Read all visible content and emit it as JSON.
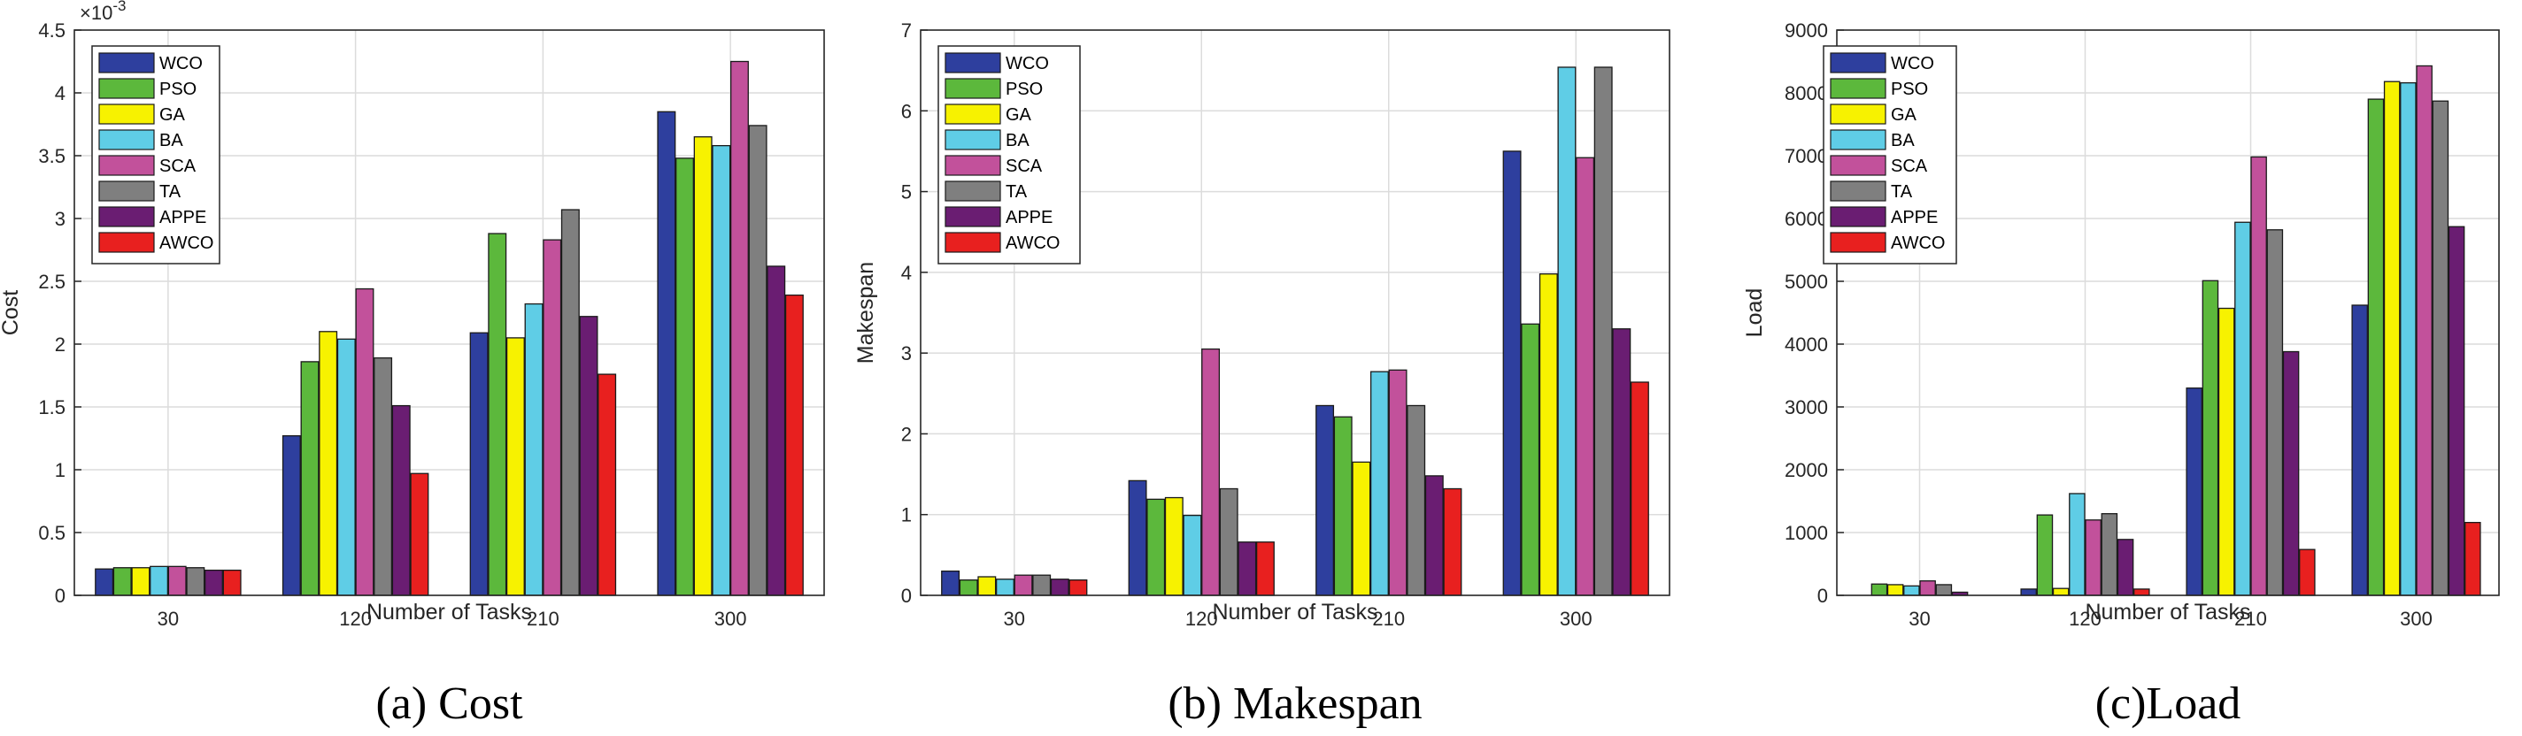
{
  "colors": {
    "WCO": "#2e3f9e",
    "PSO": "#5cb83c",
    "GA": "#f7f200",
    "BA": "#5fcde6",
    "SCA": "#c2519b",
    "TA": "#7f7f7f",
    "APPE": "#6a1d72",
    "AWCO": "#e8201f"
  },
  "chart_data": [
    {
      "type": "bar",
      "caption": "(a) Cost",
      "xlabel": "Number of Tasks",
      "ylabel": "Cost",
      "exponent_label": "×10",
      "exponent_power": "-3",
      "categories": [
        "30",
        "120",
        "210",
        "300"
      ],
      "ylim": [
        0,
        4.5
      ],
      "yticks": [
        0,
        0.5,
        1,
        1.5,
        2,
        2.5,
        3,
        3.5,
        4,
        4.5
      ],
      "ytick_labels": [
        "0",
        "0.5",
        "1",
        "1.5",
        "2",
        "2.5",
        "3",
        "3.5",
        "4",
        "4.5"
      ],
      "grid": true,
      "legend_position": "top-left",
      "series": [
        {
          "name": "WCO",
          "values": [
            0.21,
            1.27,
            2.09,
            3.85
          ]
        },
        {
          "name": "PSO",
          "values": [
            0.22,
            1.86,
            2.88,
            3.48
          ]
        },
        {
          "name": "GA",
          "values": [
            0.22,
            2.1,
            2.05,
            3.65
          ]
        },
        {
          "name": "BA",
          "values": [
            0.23,
            2.04,
            2.32,
            3.58
          ]
        },
        {
          "name": "SCA",
          "values": [
            0.23,
            2.44,
            2.83,
            4.25
          ]
        },
        {
          "name": "TA",
          "values": [
            0.22,
            1.89,
            3.07,
            3.74
          ]
        },
        {
          "name": "APPE",
          "values": [
            0.2,
            1.51,
            2.22,
            2.62
          ]
        },
        {
          "name": "AWCO",
          "values": [
            0.2,
            0.97,
            1.76,
            2.39
          ]
        }
      ]
    },
    {
      "type": "bar",
      "caption": "(b) Makespan",
      "xlabel": "Number of Tasks",
      "ylabel": "Makespan",
      "categories": [
        "30",
        "120",
        "210",
        "300"
      ],
      "ylim": [
        0,
        7
      ],
      "yticks": [
        0,
        1,
        2,
        3,
        4,
        5,
        6,
        7
      ],
      "ytick_labels": [
        "0",
        "1",
        "2",
        "3",
        "4",
        "5",
        "6",
        "7"
      ],
      "grid": true,
      "legend_position": "top-left",
      "series": [
        {
          "name": "WCO",
          "values": [
            0.3,
            1.42,
            2.35,
            5.5
          ]
        },
        {
          "name": "PSO",
          "values": [
            0.19,
            1.19,
            2.21,
            3.36
          ]
        },
        {
          "name": "GA",
          "values": [
            0.23,
            1.21,
            1.65,
            3.98
          ]
        },
        {
          "name": "BA",
          "values": [
            0.2,
            0.99,
            2.77,
            6.54
          ]
        },
        {
          "name": "SCA",
          "values": [
            0.25,
            3.05,
            2.79,
            5.42
          ]
        },
        {
          "name": "TA",
          "values": [
            0.25,
            1.32,
            2.35,
            6.54
          ]
        },
        {
          "name": "APPE",
          "values": [
            0.2,
            0.66,
            1.48,
            3.3
          ]
        },
        {
          "name": "AWCO",
          "values": [
            0.19,
            0.66,
            1.32,
            2.64
          ]
        }
      ]
    },
    {
      "type": "bar",
      "caption": "(c)Load",
      "xlabel": "Number of Tasks",
      "ylabel": "Load",
      "categories": [
        "30",
        "120",
        "210",
        "300"
      ],
      "ylim": [
        0,
        9000
      ],
      "yticks": [
        0,
        1000,
        2000,
        3000,
        4000,
        5000,
        6000,
        7000,
        8000,
        9000
      ],
      "ytick_labels": [
        "0",
        "1000",
        "2000",
        "3000",
        "4000",
        "5000",
        "6000",
        "7000",
        "8000",
        "9000"
      ],
      "grid": true,
      "legend_position": "top-left",
      "series": [
        {
          "name": "WCO",
          "values": [
            0,
            100,
            3300,
            4620
          ]
        },
        {
          "name": "PSO",
          "values": [
            180,
            1280,
            5010,
            7900
          ]
        },
        {
          "name": "GA",
          "values": [
            170,
            110,
            4570,
            8180
          ]
        },
        {
          "name": "BA",
          "values": [
            150,
            1620,
            5940,
            8160
          ]
        },
        {
          "name": "SCA",
          "values": [
            230,
            1200,
            6980,
            8430
          ]
        },
        {
          "name": "TA",
          "values": [
            170,
            1300,
            5820,
            7870
          ]
        },
        {
          "name": "APPE",
          "values": [
            50,
            890,
            3880,
            5870
          ]
        },
        {
          "name": "AWCO",
          "values": [
            0,
            100,
            730,
            1160
          ]
        }
      ]
    }
  ]
}
